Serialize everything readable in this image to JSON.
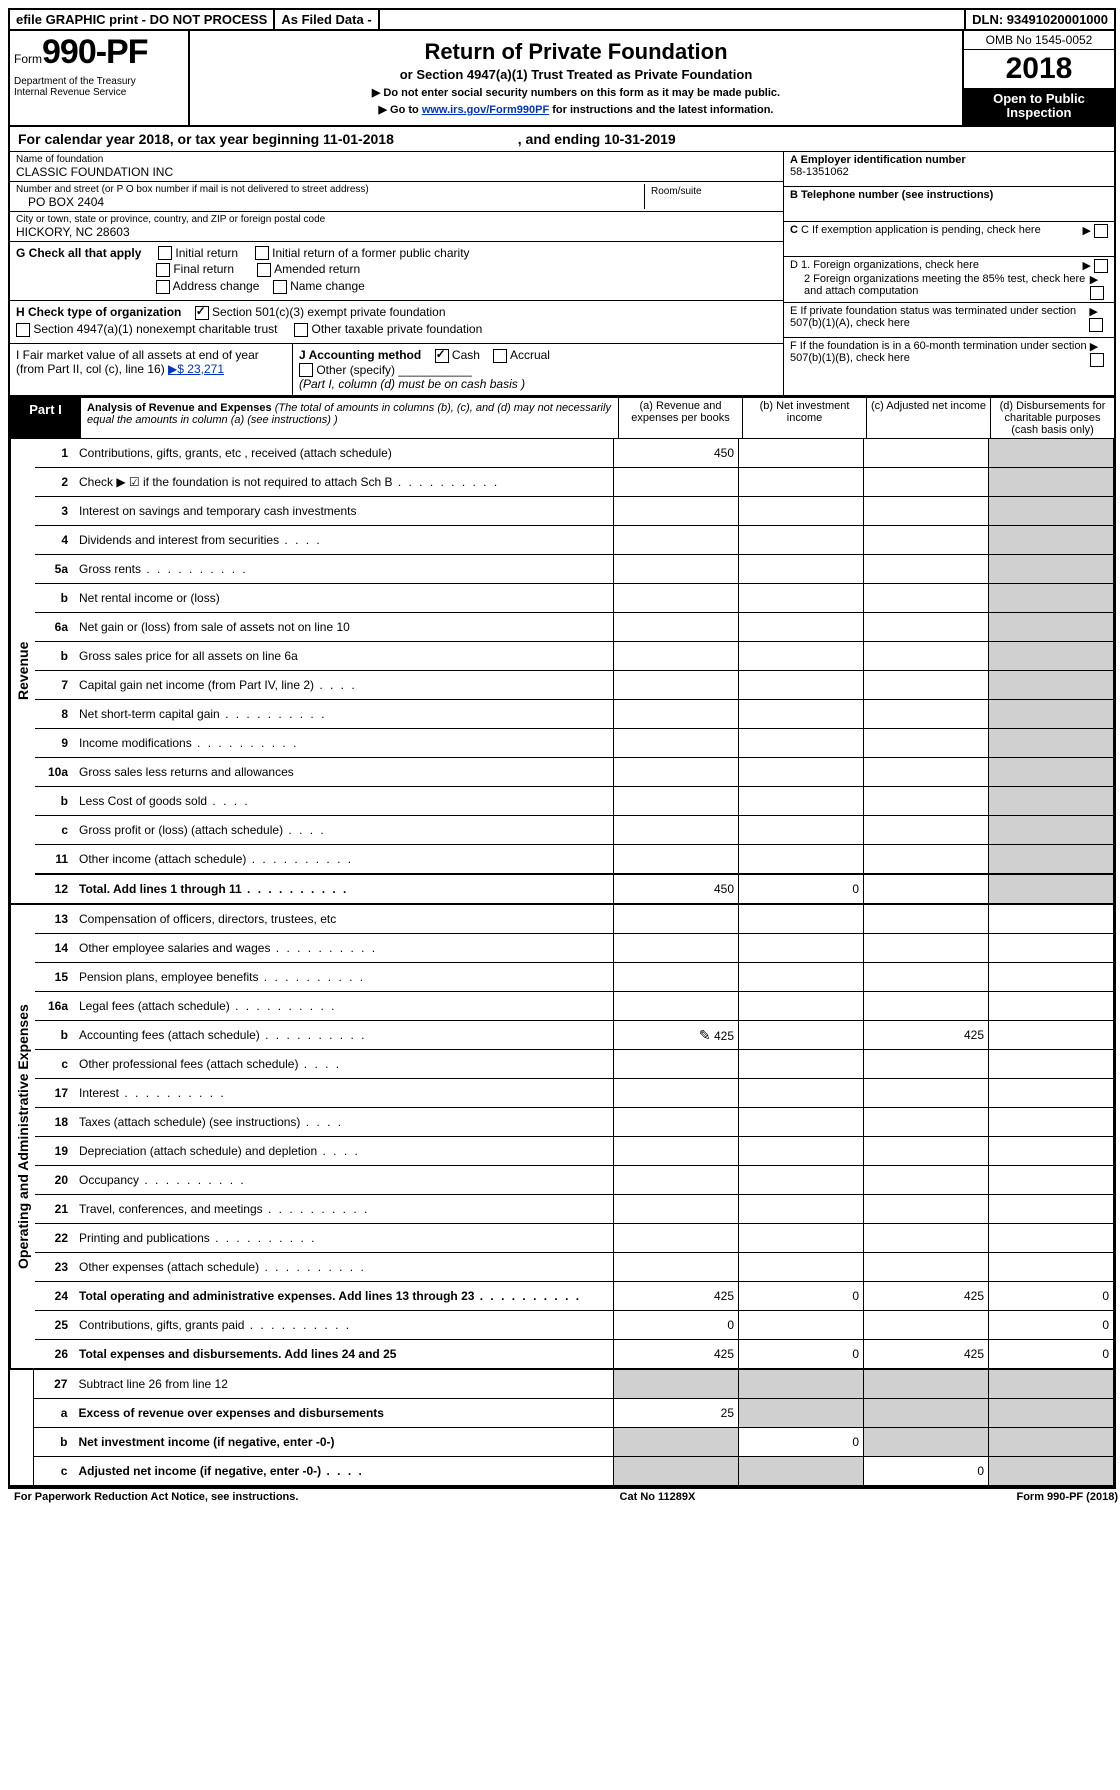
{
  "topbar": {
    "efile": "efile GRAPHIC print - DO NOT PROCESS",
    "asfiled": "As Filed Data -",
    "dln": "DLN: 93491020001000"
  },
  "formbox": {
    "form": "Form",
    "num": "990-PF",
    "dept1": "Department of the Treasury",
    "dept2": "Internal Revenue Service"
  },
  "title": {
    "h1": "Return of Private Foundation",
    "sub": "or Section 4947(a)(1) Trust Treated as Private Foundation",
    "warn1": "▶ Do not enter social security numbers on this form as it may be made public.",
    "warn2_pre": "▶ Go to ",
    "warn2_link": "www.irs.gov/Form990PF",
    "warn2_post": " for instructions and the latest information."
  },
  "omb": {
    "no": "OMB No 1545-0052",
    "year": "2018",
    "open": "Open to Public Inspection"
  },
  "calyear": {
    "pre": "For calendar year 2018, or tax year beginning ",
    "begin": "11-01-2018",
    "mid": ", and ending ",
    "end": "10-31-2019"
  },
  "left": {
    "name_label": "Name of foundation",
    "name": "CLASSIC FOUNDATION INC",
    "addr_label": "Number and street (or P O  box number if mail is not delivered to street address)",
    "addr": "PO BOX 2404",
    "room_label": "Room/suite",
    "city_label": "City or town, state or province, country, and ZIP or foreign postal code",
    "city": "HICKORY, NC  28603"
  },
  "right": {
    "a_label": "A Employer identification number",
    "a_val": "58-1351062",
    "b_label": "B Telephone number (see instructions)",
    "c_label": "C If exemption application is pending, check here",
    "d1": "D 1. Foreign organizations, check here",
    "d2": "2 Foreign organizations meeting the 85% test, check here and attach computation",
    "e": "E  If private foundation status was terminated under section 507(b)(1)(A), check here",
    "f": "F  If the foundation is in a 60-month termination under section 507(b)(1)(B), check here"
  },
  "g": {
    "label": "G Check all that apply",
    "opts": [
      "Initial return",
      "Initial return of a former public charity",
      "Final return",
      "Amended return",
      "Address change",
      "Name change"
    ]
  },
  "h": {
    "label": "H Check type of organization",
    "opt1": "Section 501(c)(3) exempt private foundation",
    "opt2": "Section 4947(a)(1) nonexempt charitable trust",
    "opt3": "Other taxable private foundation"
  },
  "i": {
    "label": "I Fair market value of all assets at end of year (from Part II, col  (c), line 16)",
    "val": "▶$  23,271"
  },
  "j": {
    "label": "J Accounting method",
    "cash": "Cash",
    "accrual": "Accrual",
    "other": "Other (specify)",
    "note": "(Part I, column (d) must be on cash basis )"
  },
  "part1": {
    "label": "Part I",
    "title": "Analysis of Revenue and Expenses",
    "note": " (The total of amounts in columns (b), (c), and (d) may not necessarily equal the amounts in column (a) (see instructions) )",
    "cols": {
      "a": "(a) Revenue and expenses per books",
      "b": "(b) Net investment income",
      "c": "(c) Adjusted net income",
      "d": "(d) Disbursements for charitable purposes (cash basis only)"
    }
  },
  "sections": {
    "revenue": "Revenue",
    "expenses": "Operating and Administrative Expenses"
  },
  "rows": [
    {
      "n": "1",
      "desc": "Contributions, gifts, grants, etc , received (attach schedule)",
      "a": "450"
    },
    {
      "n": "2",
      "desc": "Check ▶ ☑ if the foundation is not required to attach Sch  B",
      "dots": true
    },
    {
      "n": "3",
      "desc": "Interest on savings and temporary cash investments"
    },
    {
      "n": "4",
      "desc": "Dividends and interest from securities",
      "dots": "short"
    },
    {
      "n": "5a",
      "desc": "Gross rents",
      "dots": true
    },
    {
      "n": "b",
      "desc": "Net rental income or (loss)"
    },
    {
      "n": "6a",
      "desc": "Net gain or (loss) from sale of assets not on line 10"
    },
    {
      "n": "b",
      "desc": "Gross sales price for all assets on line 6a"
    },
    {
      "n": "7",
      "desc": "Capital gain net income (from Part IV, line 2)",
      "dots": "short"
    },
    {
      "n": "8",
      "desc": "Net short-term capital gain",
      "dots": true
    },
    {
      "n": "9",
      "desc": "Income modifications",
      "dots": true
    },
    {
      "n": "10a",
      "desc": "Gross sales less returns and allowances"
    },
    {
      "n": "b",
      "desc": "Less  Cost of goods sold",
      "dots": "short"
    },
    {
      "n": "c",
      "desc": "Gross profit or (loss) (attach schedule)",
      "dots": "short"
    },
    {
      "n": "11",
      "desc": "Other income (attach schedule)",
      "dots": true
    },
    {
      "n": "12",
      "desc": "Total. Add lines 1 through 11",
      "dots": true,
      "bold": true,
      "a": "450",
      "b": "0"
    }
  ],
  "exp_rows": [
    {
      "n": "13",
      "desc": "Compensation of officers, directors, trustees, etc"
    },
    {
      "n": "14",
      "desc": "Other employee salaries and wages",
      "dots": true
    },
    {
      "n": "15",
      "desc": "Pension plans, employee benefits",
      "dots": true
    },
    {
      "n": "16a",
      "desc": "Legal fees (attach schedule)",
      "dots": true
    },
    {
      "n": "b",
      "desc": "Accounting fees (attach schedule)",
      "dots": true,
      "icon": true,
      "a": "425",
      "c": "425"
    },
    {
      "n": "c",
      "desc": "Other professional fees (attach schedule)",
      "dots": "short"
    },
    {
      "n": "17",
      "desc": "Interest",
      "dots": true
    },
    {
      "n": "18",
      "desc": "Taxes (attach schedule) (see instructions)",
      "dots": "short"
    },
    {
      "n": "19",
      "desc": "Depreciation (attach schedule) and depletion",
      "dots": "short"
    },
    {
      "n": "20",
      "desc": "Occupancy",
      "dots": true
    },
    {
      "n": "21",
      "desc": "Travel, conferences, and meetings",
      "dots": true
    },
    {
      "n": "22",
      "desc": "Printing and publications",
      "dots": true
    },
    {
      "n": "23",
      "desc": "Other expenses (attach schedule)",
      "dots": true
    },
    {
      "n": "24",
      "desc": "Total operating and administrative expenses. Add lines 13 through 23",
      "dots": true,
      "bold": true,
      "a": "425",
      "b": "0",
      "c": "425",
      "d": "0"
    },
    {
      "n": "25",
      "desc": "Contributions, gifts, grants paid",
      "dots": true,
      "a": "0",
      "d": "0"
    },
    {
      "n": "26",
      "desc": "Total expenses and disbursements. Add lines 24 and 25",
      "bold": true,
      "a": "425",
      "b": "0",
      "c": "425",
      "d": "0"
    }
  ],
  "bottom_rows": [
    {
      "n": "27",
      "desc": "Subtract line 26 from line 12"
    },
    {
      "n": "a",
      "desc": "Excess of revenue over expenses and disbursements",
      "bold": true,
      "a": "25"
    },
    {
      "n": "b",
      "desc": "Net investment income (if negative, enter -0-)",
      "bold": true,
      "b": "0"
    },
    {
      "n": "c",
      "desc": "Adjusted net income (if negative, enter -0-)",
      "bold": true,
      "dots": "short",
      "c": "0"
    }
  ],
  "footer": {
    "left": "For Paperwork Reduction Act Notice, see instructions.",
    "mid": "Cat  No  11289X",
    "right": "Form 990-PF (2018)"
  }
}
